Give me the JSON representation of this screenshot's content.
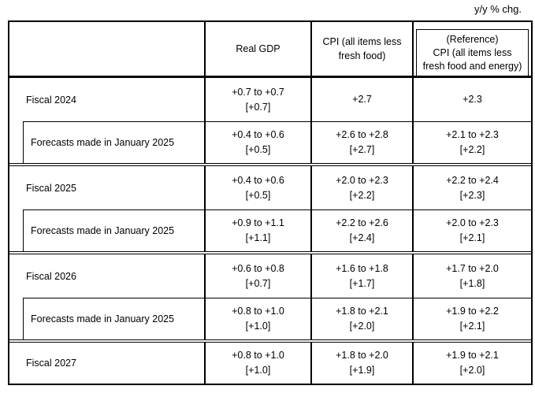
{
  "unit_label": "y/y % chg.",
  "colors": {
    "border": "#000000",
    "text": "#000000",
    "background": "#ffffff"
  },
  "header": {
    "real_gdp": "Real GDP",
    "cpi": "CPI (all items less\nfresh food)",
    "cpi_reference": "(Reference)\nCPI (all items less\nfresh food and energy)"
  },
  "blocks": [
    {
      "rows": [
        {
          "type": "fiscal",
          "label": "Fiscal 2024",
          "cells": {
            "real_gdp": "+0.7 to +0.7\n[+0.7]",
            "cpi": "+2.7",
            "cpi_reference": "+2.3"
          }
        },
        {
          "type": "forecast",
          "label": "Forecasts made in January 2025",
          "cells": {
            "real_gdp": "+0.4 to +0.6\n[+0.5]",
            "cpi": "+2.6 to +2.8\n[+2.7]",
            "cpi_reference": "+2.1 to +2.3\n[+2.2]"
          }
        }
      ]
    },
    {
      "rows": [
        {
          "type": "fiscal",
          "label": "Fiscal 2025",
          "cells": {
            "real_gdp": "+0.4 to +0.6\n[+0.5]",
            "cpi": "+2.0 to +2.3\n[+2.2]",
            "cpi_reference": "+2.2 to +2.4\n[+2.3]"
          }
        },
        {
          "type": "forecast",
          "label": "Forecasts made in January 2025",
          "cells": {
            "real_gdp": "+0.9 to +1.1\n[+1.1]",
            "cpi": "+2.2 to +2.6\n[+2.4]",
            "cpi_reference": "+2.0 to +2.3\n[+2.1]"
          }
        }
      ]
    },
    {
      "rows": [
        {
          "type": "fiscal",
          "label": "Fiscal 2026",
          "cells": {
            "real_gdp": "+0.6 to +0.8\n[+0.7]",
            "cpi": "+1.6 to +1.8\n[+1.7]",
            "cpi_reference": "+1.7 to +2.0\n[+1.8]"
          }
        },
        {
          "type": "forecast",
          "label": "Forecasts made in January 2025",
          "cells": {
            "real_gdp": "+0.8 to +1.0\n[+1.0]",
            "cpi": "+1.8 to +2.1\n[+2.0]",
            "cpi_reference": "+1.9 to +2.2\n[+2.1]"
          }
        }
      ]
    },
    {
      "rows": [
        {
          "type": "fiscal",
          "label": "Fiscal 2027",
          "cells": {
            "real_gdp": "+0.8 to +1.0\n[+1.0]",
            "cpi": "+1.8 to +2.0\n[+1.9]",
            "cpi_reference": "+1.9 to +2.1\n[+2.0]"
          }
        }
      ]
    }
  ]
}
